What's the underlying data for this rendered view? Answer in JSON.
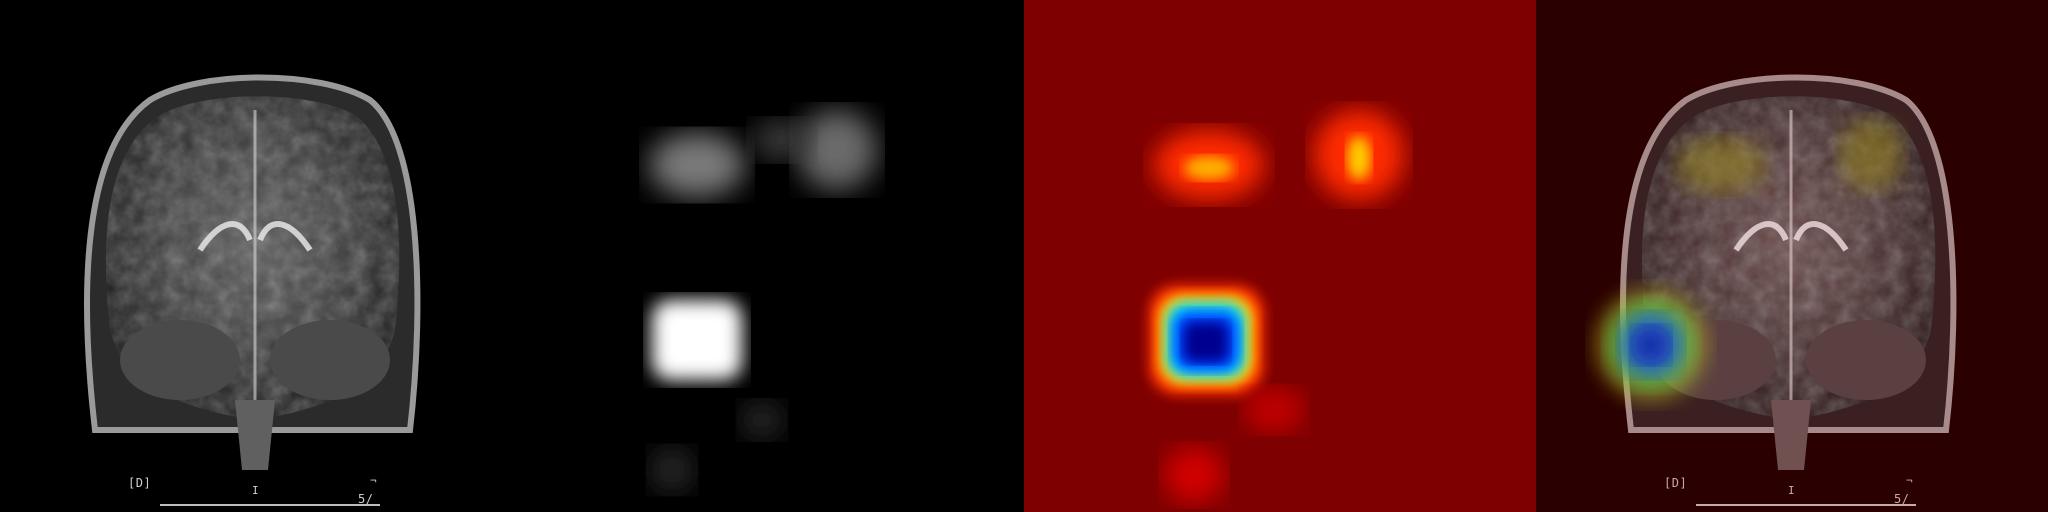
{
  "panels": [
    {
      "id": "mri",
      "caption": ""
    },
    {
      "id": "saliency",
      "caption": ""
    },
    {
      "id": "heatmap",
      "caption": ""
    },
    {
      "id": "overlay",
      "caption": ""
    }
  ],
  "mri_labels": {
    "orientation": "[D]",
    "slice": "5/",
    "marker": "I",
    "corner": "¬"
  },
  "overlay_labels": {
    "orientation": "[D]",
    "slice": "5/",
    "marker": "I",
    "corner": "¬"
  },
  "colors": {
    "background": "#000000",
    "heatmap_base": "#7f0000",
    "heat_hot": "#ff2a00",
    "heat_peak": "#00008f",
    "overlay_tint": "#2a0000"
  }
}
